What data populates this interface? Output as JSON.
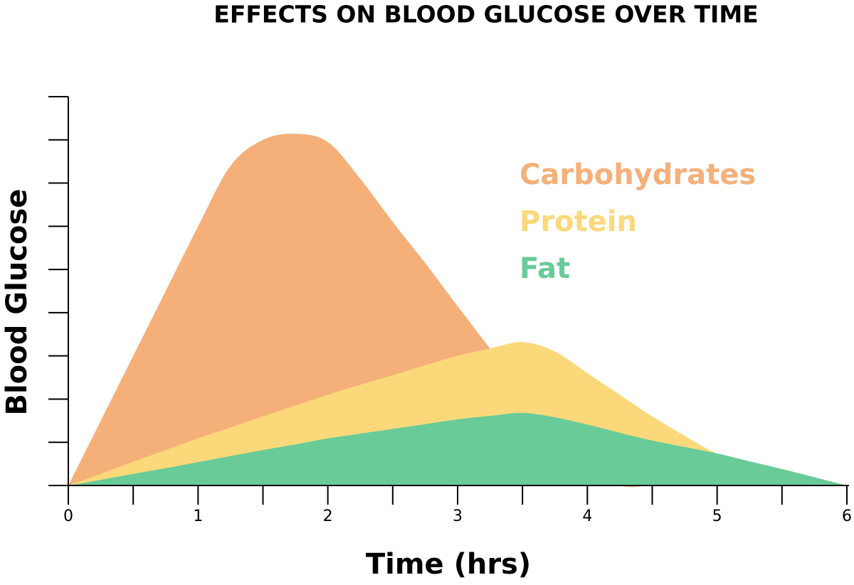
{
  "chart_data": {
    "type": "area",
    "title": "EFFECTS ON BLOOD GLUCOSE OVER TIME",
    "x_label": "Time (hrs)",
    "y_label": "Blood Glucose",
    "x": [
      0,
      0.25,
      0.5,
      0.75,
      1,
      1.25,
      1.5,
      1.75,
      2,
      2.25,
      2.5,
      2.75,
      3,
      3.25,
      3.5,
      3.75,
      4,
      4.25,
      4.5,
      4.75,
      5,
      5.25,
      5.5,
      5.75,
      6
    ],
    "series": [
      {
        "name": "Carbohydrates",
        "color": "#f5b07a",
        "values": [
          0,
          1.5,
          3.0,
          4.5,
          6.0,
          7.4,
          8.0,
          8.14,
          7.95,
          7.1,
          6.1,
          5.15,
          4.15,
          3.17,
          2.2,
          1.3,
          0.5,
          0,
          0,
          0,
          0,
          0,
          0,
          0,
          0
        ]
      },
      {
        "name": "Protein",
        "color": "#fbd97a",
        "values": [
          0,
          0.27,
          0.55,
          0.82,
          1.09,
          1.34,
          1.6,
          1.85,
          2.1,
          2.33,
          2.55,
          2.78,
          3.0,
          3.17,
          3.32,
          3.1,
          2.6,
          2.1,
          1.6,
          1.15,
          0.74,
          0.55,
          0.38,
          0.19,
          0
        ]
      },
      {
        "name": "Fat",
        "color": "#68cb98",
        "values": [
          0,
          0.13,
          0.27,
          0.4,
          0.54,
          0.68,
          0.82,
          0.95,
          1.09,
          1.2,
          1.31,
          1.42,
          1.53,
          1.61,
          1.68,
          1.58,
          1.41,
          1.22,
          1.04,
          0.89,
          0.74,
          0.56,
          0.38,
          0.19,
          0
        ]
      }
    ],
    "xlim": [
      0,
      6
    ],
    "xticks": [
      0,
      1,
      2,
      3,
      4,
      5,
      6
    ],
    "x_minor_ticks": [
      0.5,
      1.5,
      2.5,
      3.5,
      4.5,
      5.5
    ],
    "ylim": [
      0,
      9
    ],
    "yticks": [
      0,
      1,
      2,
      3,
      4,
      5,
      6,
      7,
      8,
      9
    ],
    "ytick_labels": false,
    "grid": false
  }
}
